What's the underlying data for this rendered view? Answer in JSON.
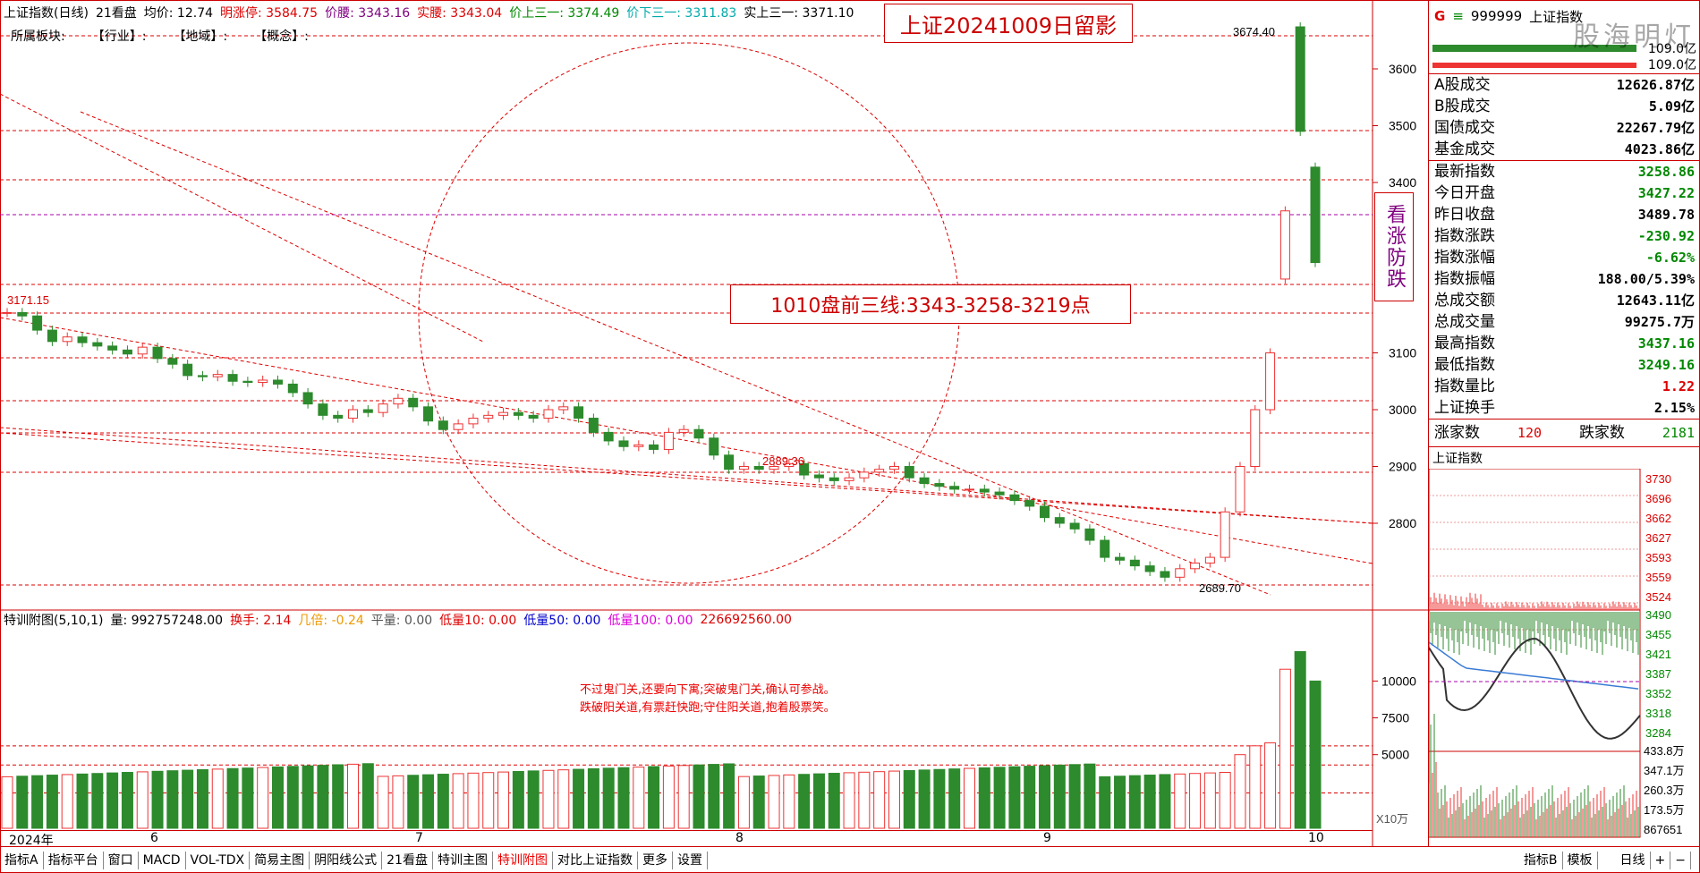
{
  "infobar": {
    "name": "上证指数(日线)",
    "kan": "21看盘",
    "avg": "均价: 12.74",
    "limit_up": "明涨停: 3584.75",
    "price": "价腰: 3343.16",
    "shiyao": "实腰: 3343.04",
    "up3": "价上三一: 3374.49",
    "down3": "价下三一: 3311.83",
    "real_up3": "实上三一: 3371.10"
  },
  "sectbar": {
    "label": "所属板块:",
    "industry": "【行业】:",
    "region": "【地域】:",
    "concept": "【概念】:"
  },
  "annotations": {
    "title": "上证20241009日留影",
    "lines": "1010盘前三线:3343-3258-3219点",
    "side": "看涨防跌"
  },
  "price_axis": [
    "3600",
    "3500",
    "3400",
    "3100",
    "3000",
    "2900",
    "2800"
  ],
  "axis_partial": "0",
  "price_labels": {
    "high": "3674.40",
    "start": "3171.15",
    "mid": "2889.36",
    "low": "2689.70"
  },
  "sub_head": {
    "title": "特训附图(5,10,1)",
    "vol": "量: 992757248.00",
    "turnover": "换手: 2.14",
    "times": "几倍: -0.24",
    "flat": "平量: 0.00",
    "low10": "低量10: 0.00",
    "low50": "低量50: 0.00",
    "low100": "低量100: 0.00",
    "last": "226692560.00"
  },
  "sub_note": [
    "不过鬼门关,还要向下寓;突破鬼门关,确认可参战。",
    "跌破阳关道,有票赶快跑;守住阳关道,抱着股票笑。"
  ],
  "vol_axis": [
    "10000",
    "7500",
    "5000"
  ],
  "vol_unit": "X10万",
  "dates": [
    "2024年",
    "6",
    "7",
    "8",
    "9",
    "10"
  ],
  "tabs": [
    "指标A",
    "指标平台",
    "窗口",
    "MACD",
    "VOL-TDX",
    "简易主图",
    "阴阳线公式",
    "21看盘",
    "特训主图",
    "特训附图",
    "对比上证指数",
    "更多",
    "设置"
  ],
  "active_tab": "特训附图",
  "tabs_right": [
    "指标B",
    "模板",
    "日线",
    "+",
    "−"
  ],
  "right": {
    "code": "999999",
    "name": "上证指数",
    "g": "G",
    "bar_val1": "109.0亿",
    "bar_val2": "109.0亿",
    "rows1": [
      {
        "k": "A股成交",
        "v": "12626.87亿",
        "c": "#000000"
      },
      {
        "k": "B股成交",
        "v": "5.09亿",
        "c": "#000000"
      },
      {
        "k": "国债成交",
        "v": "22267.79亿",
        "c": "#000000"
      },
      {
        "k": "基金成交",
        "v": "4023.86亿",
        "c": "#000000"
      }
    ],
    "rows2": [
      {
        "k": "最新指数",
        "v": "3258.86",
        "c": "#008800"
      },
      {
        "k": "今日开盘",
        "v": "3427.22",
        "c": "#008800"
      },
      {
        "k": "昨日收盘",
        "v": "3489.78",
        "c": "#000000"
      },
      {
        "k": "指数涨跌",
        "v": "-230.92",
        "c": "#008800"
      },
      {
        "k": "指数涨幅",
        "v": "-6.62%",
        "c": "#008800"
      },
      {
        "k": "指数振幅",
        "v": "188.00/5.39%",
        "c": "#000000"
      },
      {
        "k": "总成交额",
        "v": "12643.11亿",
        "c": "#000000"
      },
      {
        "k": "总成交量",
        "v": "99275.7万",
        "c": "#000000"
      },
      {
        "k": "最高指数",
        "v": "3437.16",
        "c": "#008800"
      },
      {
        "k": "最低指数",
        "v": "3249.16",
        "c": "#008800"
      },
      {
        "k": "指数量比",
        "v": "1.22",
        "c": "#dd0000"
      },
      {
        "k": "上证换手",
        "v": "2.15%",
        "c": "#000000"
      }
    ],
    "up_label": "涨家数",
    "up_val": "120",
    "down_label": "跌家数",
    "down_val": "2181",
    "mini_title": "上证指数",
    "mini_axis_top": [
      "3730",
      "3696",
      "3662",
      "3627",
      "3593",
      "3559",
      "3524"
    ],
    "mini_axis_bottom": [
      "3490",
      "3455",
      "3421",
      "3387",
      "3352",
      "3318",
      "3284"
    ],
    "mini_vol_axis": [
      "433.8万",
      "347.1万",
      "260.3万",
      "173.5万",
      "867651"
    ]
  },
  "watermark": "股海明灯"
}
